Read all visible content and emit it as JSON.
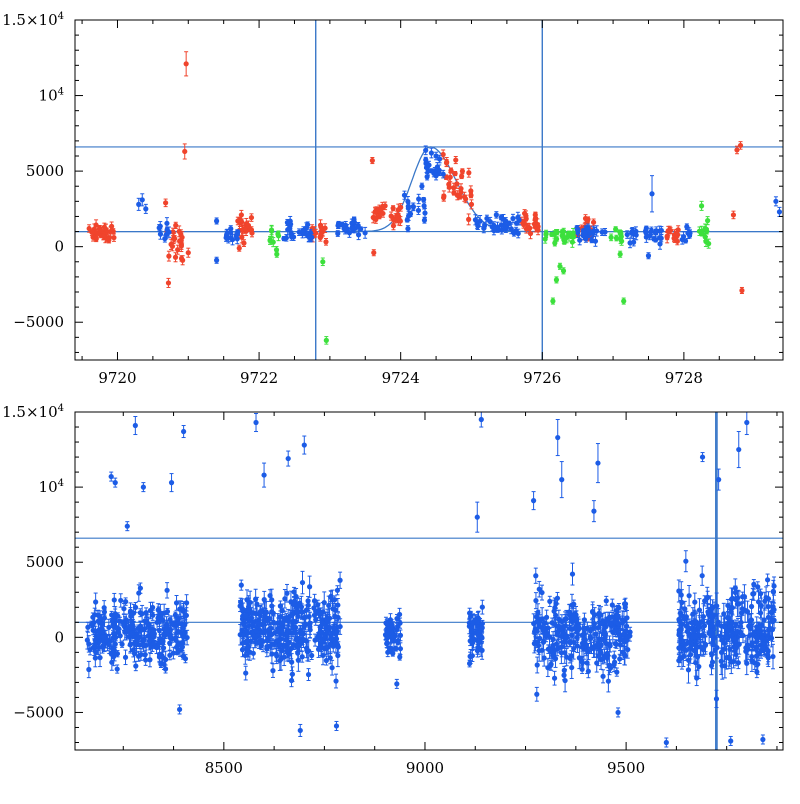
{
  "colors": {
    "blue": "#1c5ce6",
    "red": "#f0442c",
    "green": "#3ce03c",
    "line": "#3a78c8",
    "axis": "#000000"
  },
  "chart_data": [
    {
      "type": "scatter",
      "title": "",
      "xlabel": "",
      "ylabel": "",
      "xlim": [
        9719.4,
        9729.4
      ],
      "ylim": [
        -7500,
        15000
      ],
      "xticks": [
        9720,
        9722,
        9724,
        9726,
        9728
      ],
      "xtick_labels": [
        "9720",
        "9722",
        "9724",
        "9726",
        "9728"
      ],
      "ytick_labels": [
        {
          "value": -5000,
          "base": "−5000",
          "sup": ""
        },
        {
          "value": 0,
          "base": "0",
          "sup": ""
        },
        {
          "value": 5000,
          "base": "5000",
          "sup": ""
        },
        {
          "value": 10000,
          "base": "10",
          "sup": "4"
        },
        {
          "value": 15000,
          "base": "1.5×10",
          "sup": "4"
        }
      ],
      "hlines": [
        1000,
        6600
      ],
      "vlines": [
        9722.8,
        9726.0
      ],
      "model": {
        "baseline": 1000,
        "peak": 6600,
        "t0": 9724.42,
        "sigma_rise": 0.26,
        "sigma_fall": 0.36
      },
      "series": [
        {
          "name": "red",
          "color": "red",
          "points": [
            [
              9719.6,
              1200,
              250
            ],
            [
              9719.7,
              900,
              250
            ],
            [
              9719.75,
              1100,
              300
            ],
            [
              9719.8,
              700,
              250
            ],
            [
              9719.9,
              1000,
              300
            ],
            [
              9719.95,
              600,
              250
            ],
            [
              9720.7,
              1000,
              300
            ],
            [
              9720.72,
              -2400,
              300
            ],
            [
              9720.8,
              600,
              300
            ],
            [
              9720.82,
              -700,
              300
            ],
            [
              9720.85,
              -200,
              300
            ],
            [
              9720.9,
              400,
              300
            ],
            [
              9720.92,
              -900,
              300
            ],
            [
              9720.95,
              6300,
              500
            ],
            [
              9720.97,
              12100,
              800
            ],
            [
              9721.0,
              -400,
              300
            ],
            [
              9720.68,
              2900,
              250
            ],
            [
              9721.7,
              1700,
              250
            ],
            [
              9721.75,
              2100,
              300
            ],
            [
              9721.8,
              1200,
              250
            ],
            [
              9721.85,
              1400,
              300
            ],
            [
              9721.9,
              900,
              250
            ],
            [
              9721.72,
              -100,
              200
            ],
            [
              9722.75,
              1200,
              250
            ],
            [
              9722.8,
              900,
              250
            ],
            [
              9722.9,
              1000,
              300
            ],
            [
              9723.6,
              5700,
              200
            ],
            [
              9723.62,
              -400,
              200
            ],
            [
              9723.7,
              2500,
              250
            ],
            [
              9723.75,
              2200,
              250
            ],
            [
              9723.78,
              2700,
              250
            ],
            [
              9723.9,
              1800,
              250
            ],
            [
              9723.95,
              2100,
              250
            ],
            [
              9724.0,
              2600,
              250
            ],
            [
              9724.6,
              6100,
              300
            ],
            [
              9724.65,
              5600,
              300
            ],
            [
              9724.7,
              4600,
              300
            ],
            [
              9724.75,
              3900,
              300
            ],
            [
              9724.8,
              3400,
              300
            ],
            [
              9724.85,
              3600,
              300
            ],
            [
              9724.9,
              3300,
              300
            ],
            [
              9725.0,
              2800,
              300
            ],
            [
              9725.7,
              1700,
              250
            ],
            [
              9725.75,
              2200,
              250
            ],
            [
              9725.8,
              1300,
              250
            ],
            [
              9725.9,
              1800,
              250
            ],
            [
              9726.5,
              1100,
              250
            ],
            [
              9726.6,
              1300,
              250
            ],
            [
              9726.7,
              900,
              250
            ],
            [
              9727.8,
              1100,
              250
            ],
            [
              9727.9,
              900,
              250
            ],
            [
              9728.7,
              2100,
              250
            ],
            [
              9728.75,
              6400,
              250
            ],
            [
              9728.8,
              6700,
              250
            ],
            [
              9728.82,
              -2900,
              200
            ]
          ],
          "clusters": [
            {
              "x0": 9719.6,
              "x1": 9719.95,
              "y": 1000,
              "s": 350,
              "n": 22
            },
            {
              "x0": 9720.7,
              "x1": 9721.0,
              "y": 500,
              "s": 700,
              "n": 14
            },
            {
              "x0": 9721.7,
              "x1": 9721.95,
              "y": 1200,
              "s": 400,
              "n": 14
            },
            {
              "x0": 9722.75,
              "x1": 9722.95,
              "y": 1000,
              "s": 300,
              "n": 10
            },
            {
              "x0": 9723.6,
              "x1": 9723.8,
              "y": 2300,
              "s": 350,
              "n": 10
            },
            {
              "x0": 9723.85,
              "x1": 9724.0,
              "y": 2000,
              "s": 350,
              "n": 10
            },
            {
              "x0": 9724.6,
              "x1": 9725.0,
              "y": 3800,
              "s": 900,
              "n": 20
            },
            {
              "x0": 9725.7,
              "x1": 9725.95,
              "y": 1600,
              "s": 300,
              "n": 14
            },
            {
              "x0": 9726.5,
              "x1": 9726.75,
              "y": 1100,
              "s": 300,
              "n": 12
            },
            {
              "x0": 9727.75,
              "x1": 9727.95,
              "y": 900,
              "s": 300,
              "n": 10
            }
          ]
        },
        {
          "name": "blue",
          "color": "blue",
          "points": [
            [
              9720.3,
              2800,
              400
            ],
            [
              9720.35,
              3100,
              400
            ],
            [
              9720.4,
              2500,
              300
            ],
            [
              9721.4,
              1700,
              200
            ],
            [
              9721.4,
              -900,
              200
            ],
            [
              9721.55,
              900,
              250
            ],
            [
              9721.6,
              600,
              250
            ],
            [
              9722.4,
              1600,
              200
            ],
            [
              9723.2,
              1200,
              200
            ],
            [
              9723.4,
              1400,
              200
            ],
            [
              9724.3,
              4000,
              200
            ],
            [
              9724.4,
              5400,
              250
            ],
            [
              9724.5,
              6000,
              250
            ],
            [
              9724.55,
              5800,
              250
            ],
            [
              9724.6,
              4800,
              250
            ],
            [
              9725.5,
              1300,
              200
            ],
            [
              9725.6,
              900,
              200
            ],
            [
              9726.6,
              900,
              250
            ],
            [
              9727.2,
              800,
              250
            ],
            [
              9727.55,
              3500,
              1200
            ],
            [
              9727.5,
              -600,
              200
            ],
            [
              9727.6,
              900,
              250
            ],
            [
              9729.3,
              3000,
              300
            ],
            [
              9729.35,
              2300,
              300
            ]
          ],
          "clusters": [
            {
              "x0": 9720.55,
              "x1": 9720.75,
              "y": 900,
              "s": 300,
              "n": 8
            },
            {
              "x0": 9721.5,
              "x1": 9721.7,
              "y": 900,
              "s": 350,
              "n": 10
            },
            {
              "x0": 9722.35,
              "x1": 9722.75,
              "y": 900,
              "s": 300,
              "n": 22
            },
            {
              "x0": 9723.1,
              "x1": 9723.55,
              "y": 1300,
              "s": 250,
              "n": 20
            },
            {
              "x0": 9724.05,
              "x1": 9724.35,
              "y": 2400,
              "s": 500,
              "n": 16
            },
            {
              "x0": 9724.35,
              "x1": 9724.55,
              "y": 5200,
              "s": 600,
              "n": 14
            },
            {
              "x0": 9725.05,
              "x1": 9725.7,
              "y": 1500,
              "s": 300,
              "n": 30
            },
            {
              "x0": 9726.45,
              "x1": 9726.9,
              "y": 900,
              "s": 250,
              "n": 22
            },
            {
              "x0": 9727.2,
              "x1": 9727.7,
              "y": 700,
              "s": 250,
              "n": 22
            },
            {
              "x0": 9727.95,
              "x1": 9728.1,
              "y": 800,
              "s": 250,
              "n": 8
            }
          ]
        },
        {
          "name": "green",
          "color": "green",
          "points": [
            [
              9722.2,
              300,
              300
            ],
            [
              9722.25,
              -500,
              200
            ],
            [
              9722.9,
              -1000,
              250
            ],
            [
              9722.95,
              -6200,
              250
            ],
            [
              9726.15,
              -3600,
              200
            ],
            [
              9726.2,
              -2200,
              200
            ],
            [
              9726.25,
              -1300,
              200
            ],
            [
              9726.3,
              -1600,
              200
            ],
            [
              9727.1,
              -500,
              200
            ],
            [
              9727.15,
              -3600,
              200
            ],
            [
              9728.25,
              2700,
              300
            ],
            [
              9728.3,
              1200,
              300
            ],
            [
              9728.35,
              200,
              300
            ]
          ],
          "clusters": [
            {
              "x0": 9722.15,
              "x1": 9722.3,
              "y": 300,
              "s": 300,
              "n": 8
            },
            {
              "x0": 9726.0,
              "x1": 9726.45,
              "y": 700,
              "s": 250,
              "n": 22
            },
            {
              "x0": 9726.95,
              "x1": 9727.15,
              "y": 700,
              "s": 250,
              "n": 8
            },
            {
              "x0": 9728.2,
              "x1": 9728.35,
              "y": 1000,
              "s": 400,
              "n": 8
            }
          ]
        }
      ]
    },
    {
      "type": "scatter",
      "title": "",
      "xlabel": "",
      "ylabel": "",
      "xlim": [
        8130,
        9890
      ],
      "ylim": [
        -7500,
        15000
      ],
      "xticks": [
        8500,
        9000,
        9500
      ],
      "xtick_labels": [
        "8500",
        "9000",
        "9500"
      ],
      "ytick_labels": [
        {
          "value": -5000,
          "base": "−5000",
          "sup": ""
        },
        {
          "value": 0,
          "base": "0",
          "sup": ""
        },
        {
          "value": 5000,
          "base": "5000",
          "sup": ""
        },
        {
          "value": 10000,
          "base": "10",
          "sup": "4"
        },
        {
          "value": 15000,
          "base": "1.5×10",
          "sup": "4"
        }
      ],
      "hlines": [
        1000,
        6600
      ],
      "vlines": [
        9722.8,
        9726.0
      ],
      "series": [
        {
          "name": "all",
          "color": "blue",
          "points": [
            [
              8220,
              10700,
              300
            ],
            [
              8230,
              10300,
              300
            ],
            [
              8260,
              7400,
              300
            ],
            [
              8280,
              14100,
              600
            ],
            [
              8300,
              10000,
              300
            ],
            [
              8370,
              10300,
              600
            ],
            [
              8400,
              13700,
              400
            ],
            [
              8390,
              -4800,
              300
            ],
            [
              8580,
              14300,
              600
            ],
            [
              8600,
              10800,
              800
            ],
            [
              8660,
              11900,
              500
            ],
            [
              8700,
              12800,
              600
            ],
            [
              8690,
              -6200,
              400
            ],
            [
              8780,
              -5900,
              300
            ],
            [
              8930,
              -3100,
              300
            ],
            [
              9130,
              8000,
              1000
            ],
            [
              9140,
              14500,
              500
            ],
            [
              9270,
              9100,
              600
            ],
            [
              9330,
              13300,
              1200
            ],
            [
              9340,
              10500,
              1200
            ],
            [
              9420,
              8400,
              700
            ],
            [
              9430,
              11600,
              1300
            ],
            [
              9480,
              -5000,
              300
            ],
            [
              9600,
              -7000,
              300
            ],
            [
              9690,
              12000,
              300
            ],
            [
              9730,
              10500,
              700
            ],
            [
              9780,
              12500,
              1200
            ],
            [
              9800,
              14300,
              800
            ],
            [
              9760,
              -6900,
              300
            ],
            [
              9840,
              -6800,
              300
            ]
          ],
          "clusters": [
            {
              "x0": 8160,
              "x1": 8410,
              "y": 200,
              "s": 1100,
              "n": 260,
              "err": 400
            },
            {
              "x0": 8540,
              "x1": 8790,
              "y": 700,
              "s": 1300,
              "n": 300,
              "err": 500
            },
            {
              "x0": 8900,
              "x1": 8940,
              "y": 200,
              "s": 600,
              "n": 50,
              "err": 300
            },
            {
              "x0": 9110,
              "x1": 9145,
              "y": 100,
              "s": 800,
              "n": 50,
              "err": 400
            },
            {
              "x0": 9270,
              "x1": 9510,
              "y": 200,
              "s": 1200,
              "n": 260,
              "err": 500
            },
            {
              "x0": 9630,
              "x1": 9870,
              "y": 300,
              "s": 1400,
              "n": 280,
              "err": 600
            }
          ]
        }
      ]
    }
  ]
}
